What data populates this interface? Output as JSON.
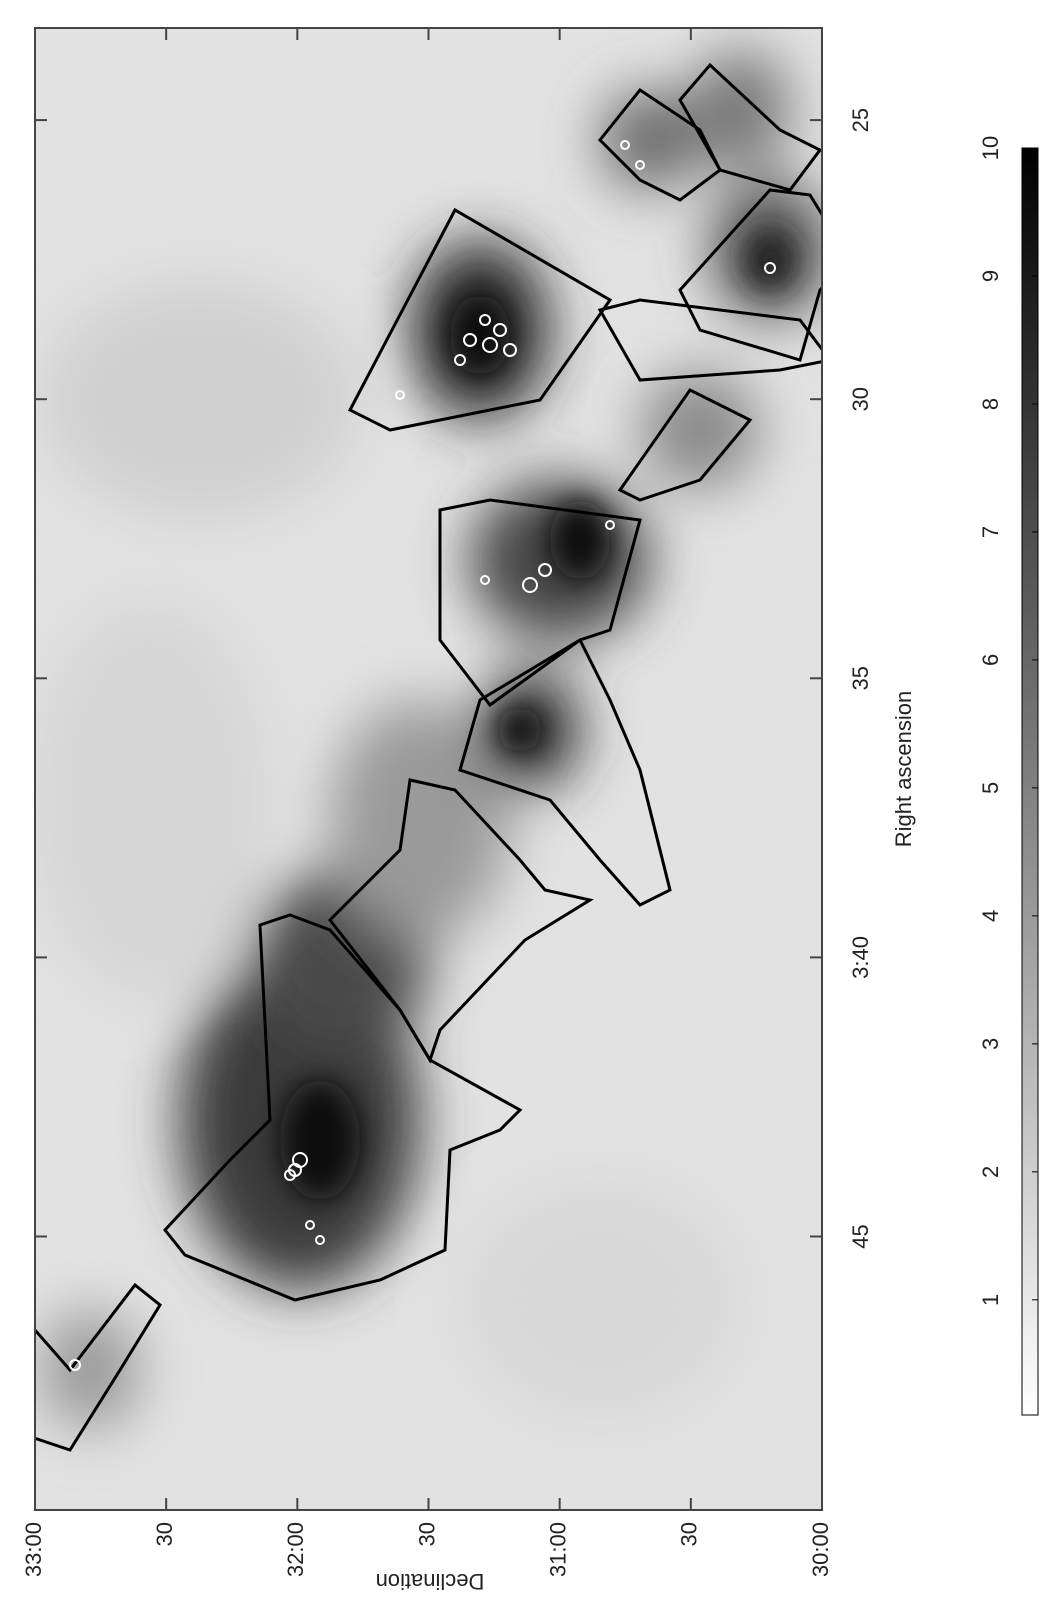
{
  "chart_data": {
    "type": "image",
    "xlabel": "Right ascension",
    "ylabel": "Declination",
    "xlim": [
      49.9,
      23.35
    ],
    "ylim": [
      30,
      33
    ],
    "xticks": [
      45,
      {
        "value": 40,
        "label": "3:40"
      },
      35,
      30,
      25
    ],
    "yticks": [
      {
        "value": 33,
        "label": "33:00"
      },
      {
        "value": 32.5,
        "label": "30"
      },
      {
        "value": 32,
        "label": "32:00"
      },
      {
        "value": 31.5,
        "label": "30"
      },
      {
        "value": 31,
        "label": "31:00"
      },
      {
        "value": 30.5,
        "label": "30"
      },
      {
        "value": 30,
        "label": "30:00"
      }
    ],
    "colorbar": {
      "lim": [
        0.1,
        10
      ],
      "ticks": [
        1,
        2,
        3,
        4,
        5,
        6,
        7,
        8,
        9,
        10
      ],
      "colors": [
        "#ffffff",
        "#000000"
      ]
    }
  }
}
